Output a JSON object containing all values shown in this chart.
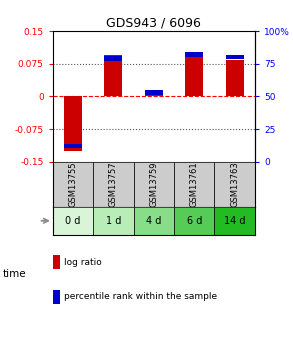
{
  "title": "GDS943 / 6096",
  "samples": [
    "GSM13755",
    "GSM13757",
    "GSM13759",
    "GSM13761",
    "GSM13763"
  ],
  "time_labels": [
    "0 d",
    "1 d",
    "4 d",
    "6 d",
    "14 d"
  ],
  "log_ratios": [
    -0.125,
    0.095,
    0.005,
    0.095,
    0.083
  ],
  "percentile_ranks": [
    12,
    79,
    53,
    82,
    80
  ],
  "ylim_left": [
    -0.15,
    0.15
  ],
  "ylim_right": [
    0,
    100
  ],
  "yticks_left": [
    -0.15,
    -0.075,
    0,
    0.075,
    0.15
  ],
  "yticks_right": [
    0,
    25,
    50,
    75,
    100
  ],
  "ytick_labels_left": [
    "-0.15",
    "-0.075",
    "0",
    "0.075",
    "0.15"
  ],
  "ytick_labels_right": [
    "0",
    "25",
    "50",
    "75",
    "100%"
  ],
  "hlines_dotted": [
    -0.075,
    0.075
  ],
  "hline_dashed": 0,
  "bar_width": 0.45,
  "red_color": "#cc0000",
  "blue_color": "#0000cc",
  "sample_bg_color": "#cccccc",
  "time_colors": [
    "#d8f5d8",
    "#b8edb8",
    "#88dd88",
    "#55cc55",
    "#22bb22"
  ],
  "legend_red": "log ratio",
  "legend_blue": "percentile rank within the sample",
  "time_label": "time",
  "background_color": "#ffffff"
}
